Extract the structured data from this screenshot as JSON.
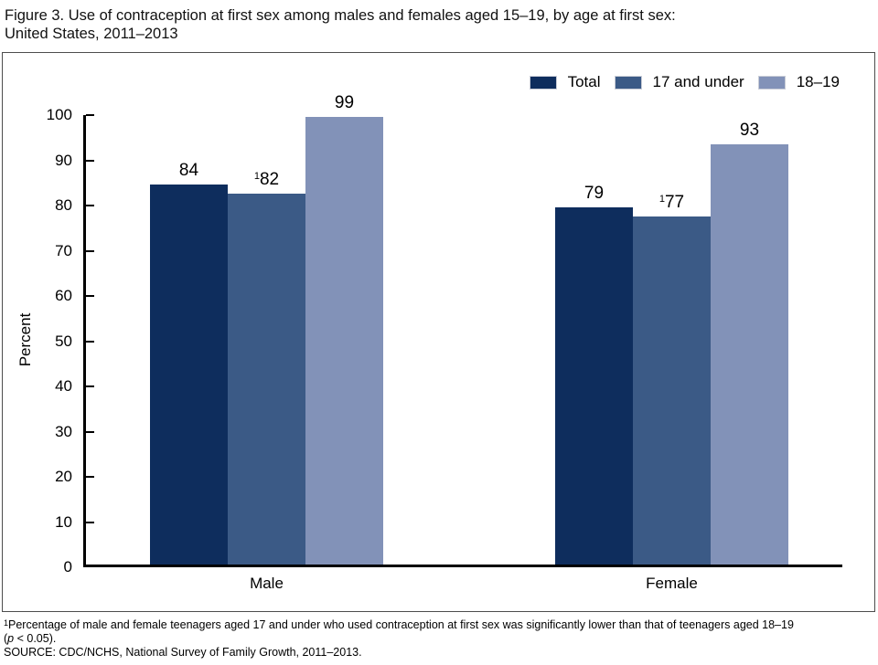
{
  "title": {
    "line1": "Figure 3. Use of contraception at first sex among males and females aged 15–19, by age at first sex:",
    "line2": "United States, 2011–2013"
  },
  "chart_data": {
    "type": "bar",
    "categories": [
      "Male",
      "Female"
    ],
    "series": [
      {
        "name": "Total",
        "color": "#0e2d5d",
        "values": [
          84,
          79
        ],
        "label_sups": [
          "",
          ""
        ]
      },
      {
        "name": "17 and under",
        "color": "#3b5a86",
        "values": [
          82,
          77
        ],
        "label_sups": [
          "1",
          "1"
        ]
      },
      {
        "name": "18–19",
        "color": "#8292b8",
        "values": [
          99,
          93
        ],
        "label_sups": [
          "",
          ""
        ]
      }
    ],
    "ylabel": "Percent",
    "ylim": [
      0,
      100
    ],
    "yticks": [
      0,
      10,
      20,
      30,
      40,
      50,
      60,
      70,
      80,
      90,
      100
    ],
    "legend_position": "top-right",
    "grid": false,
    "axis_color": "#000000",
    "frame_color": "#4d4d4d"
  },
  "footnote": {
    "sup": "1",
    "line1": "Percentage of male and female teenagers aged 17 and under who used contraception at first sex was significantly lower than that of teenagers aged 18–19",
    "line2_pre": "(",
    "line2_p": "p",
    "line2_post": " < 0.05).",
    "source": "SOURCE: CDC/NCHS, National Survey of Family Growth, 2011–2013."
  }
}
